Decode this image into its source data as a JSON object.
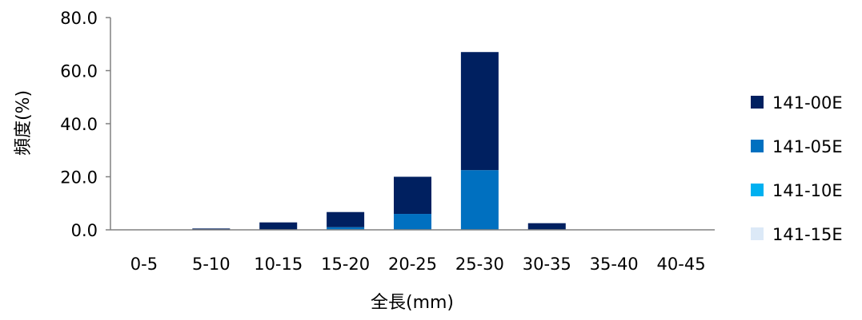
{
  "chart_data": {
    "type": "bar",
    "stacked": true,
    "categories": [
      "0-5",
      "5-10",
      "10-15",
      "15-20",
      "20-25",
      "25-30",
      "30-35",
      "35-40",
      "40-45"
    ],
    "series": [
      {
        "name": "141-15E",
        "color": "#dce9f7",
        "values": [
          0,
          0,
          0,
          0,
          0,
          0,
          0,
          0,
          0
        ]
      },
      {
        "name": "141-10E",
        "color": "#00b0f0",
        "values": [
          0,
          0,
          0,
          0,
          0,
          0,
          0,
          0,
          0
        ]
      },
      {
        "name": "141-05E",
        "color": "#0070c0",
        "values": [
          0,
          0,
          0,
          1.0,
          6.0,
          22.5,
          0,
          0,
          0
        ]
      },
      {
        "name": "141-00E",
        "color": "#002060",
        "values": [
          0,
          0.5,
          2.8,
          5.7,
          14.0,
          44.5,
          2.5,
          0,
          0
        ]
      }
    ],
    "xlabel": "全長(mm)",
    "ylabel": "頻度(%)",
    "ylim": [
      0,
      80
    ],
    "yticks": [
      "0.0",
      "20.0",
      "40.0",
      "60.0",
      "80.0"
    ],
    "ytick_values": [
      0,
      20,
      40,
      60,
      80
    ],
    "legend_order": [
      "141-00E",
      "141-05E",
      "141-10E",
      "141-15E"
    ],
    "legend_position": "right",
    "grid": false
  }
}
